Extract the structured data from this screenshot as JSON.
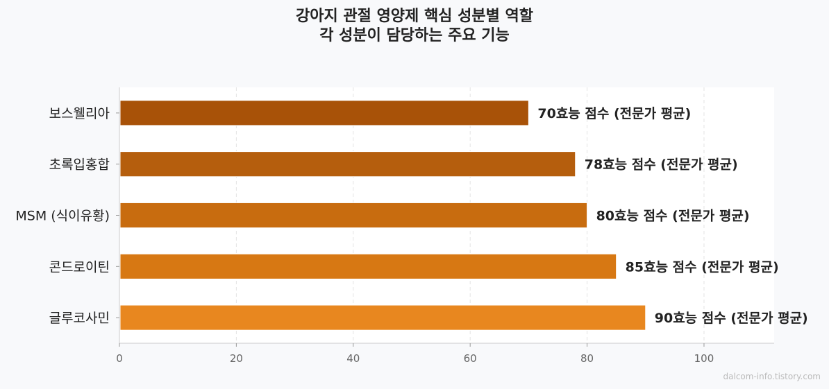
{
  "chart_data": {
    "type": "bar",
    "orientation": "horizontal",
    "title": "강아지 관절 영양제 핵심 성분별 역할",
    "subtitle": "각 성분이 담당하는 주요 기능",
    "categories": [
      "보스웰리아",
      "초록입홍합",
      "MSM (식이유황)",
      "콘드로이틴",
      "글루코사민"
    ],
    "values": [
      70,
      78,
      80,
      85,
      90
    ],
    "value_label_suffix": "효능 점수 (전문가 평균)",
    "colors": [
      "#a85208",
      "#b55e0d",
      "#c86c0f",
      "#d77813",
      "#e8871f"
    ],
    "xlabel": "",
    "ylabel": "",
    "xlim": [
      0,
      112
    ],
    "x_ticks": [
      0,
      20,
      40,
      60,
      80,
      100
    ],
    "grid": "vertical dashed",
    "legend": "none"
  },
  "watermark": "dalcom-info.tistory.com"
}
